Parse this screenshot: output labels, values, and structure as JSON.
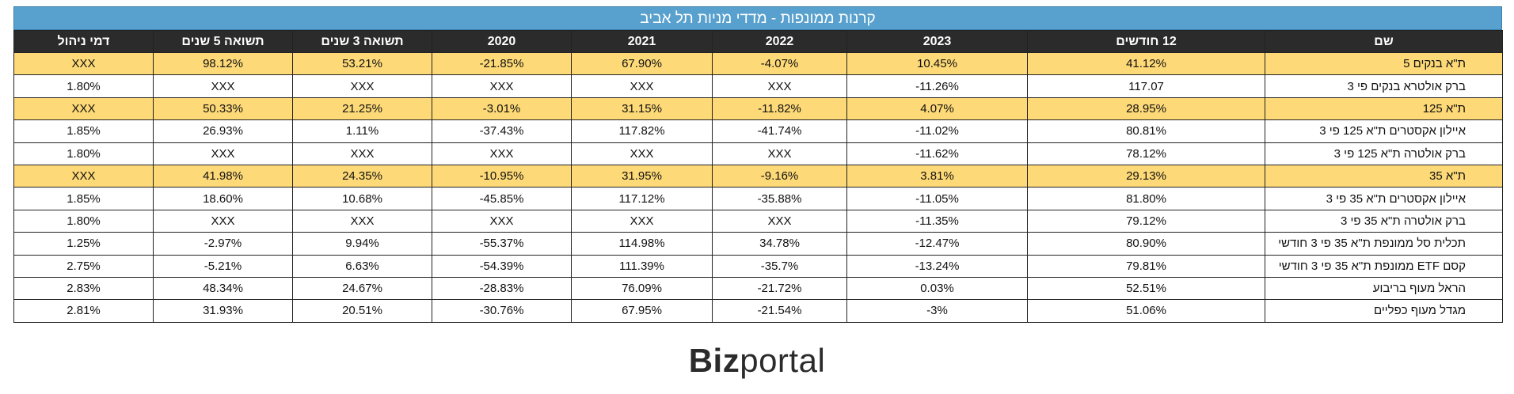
{
  "title": "קרנות ממונפות - מדדי מניות תל אביב",
  "columns": [
    "שם",
    "12 חודשים",
    "2023",
    "2022",
    "2021",
    "2020",
    "תשואה 3 שנים",
    "תשואה 5 שנים",
    "דמי ניהול"
  ],
  "rows": [
    {
      "highlight": true,
      "cells": [
        "ת\"א בנקים 5",
        "41.12%",
        "10.45%",
        "-4.07%",
        "67.90%",
        "-21.85%",
        "53.21%",
        "98.12%",
        "XXX"
      ]
    },
    {
      "highlight": false,
      "cells": [
        "ברק אולטרא בנקים פי 3",
        "117.07",
        "-11.26%",
        "XXX",
        "XXX",
        "XXX",
        "XXX",
        "XXX",
        "1.80%"
      ]
    },
    {
      "highlight": true,
      "cells": [
        "ת\"א 125",
        "28.95%",
        "4.07%",
        "-11.82%",
        "31.15%",
        "-3.01%",
        "21.25%",
        "50.33%",
        "XXX"
      ]
    },
    {
      "highlight": false,
      "cells": [
        "איילון אקסטרים ת\"א 125 פי 3",
        "80.81%",
        "-11.02%",
        "-41.74%",
        "117.82%",
        "-37.43%",
        "1.11%",
        "26.93%",
        "1.85%"
      ]
    },
    {
      "highlight": false,
      "cells": [
        "ברק אולטרה ת\"א 125 פי 3",
        "78.12%",
        "-11.62%",
        "XXX",
        "XXX",
        "XXX",
        "XXX",
        "XXX",
        "1.80%"
      ]
    },
    {
      "highlight": true,
      "cells": [
        "ת\"א 35",
        "29.13%",
        "3.81%",
        "-9.16%",
        "31.95%",
        "-10.95%",
        "24.35%",
        "41.98%",
        "XXX"
      ]
    },
    {
      "highlight": false,
      "cells": [
        "איילון אקסטרים ת\"א 35 פי 3",
        "81.80%",
        "-11.05%",
        "-35.88%",
        "117.12%",
        "-45.85%",
        "10.68%",
        "18.60%",
        "1.85%"
      ]
    },
    {
      "highlight": false,
      "cells": [
        "ברק אולטרה ת\"א 35 פי 3",
        "79.12%",
        "-11.35%",
        "XXX",
        "XXX",
        "XXX",
        "XXX",
        "XXX",
        "1.80%"
      ]
    },
    {
      "highlight": false,
      "cells": [
        "תכלית סל ממונפת ת\"א 35 פי 3 חודשי",
        "80.90%",
        "-12.47%",
        "34.78%",
        "114.98%",
        "-55.37%",
        "9.94%",
        "-2.97%",
        "1.25%"
      ]
    },
    {
      "highlight": false,
      "cells": [
        "קסם ETF ממונפת ת\"א 35 פי 3 חודשי",
        "79.81%",
        "-13.24%",
        "-35.7%",
        "111.39%",
        "-54.39%",
        "6.63%",
        "-5.21%",
        "2.75%"
      ]
    },
    {
      "highlight": false,
      "cells": [
        "הראל מעוף בריבוע",
        "52.51%",
        "0.03%",
        "-21.72%",
        "76.09%",
        "-28.83%",
        "24.67%",
        "48.34%",
        "2.83%"
      ]
    },
    {
      "highlight": false,
      "cells": [
        "מגדל מעוף כפליים",
        "51.06%",
        "-3%",
        "-21.54%",
        "67.95%",
        "-30.76%",
        "20.51%",
        "31.93%",
        "2.81%"
      ]
    }
  ],
  "logo": {
    "bold": "Biz",
    "regular": "portal"
  },
  "colors": {
    "title_bg": "#58a0cd",
    "header_bg": "#2b2b2b",
    "highlight_row": "#fdd977"
  }
}
